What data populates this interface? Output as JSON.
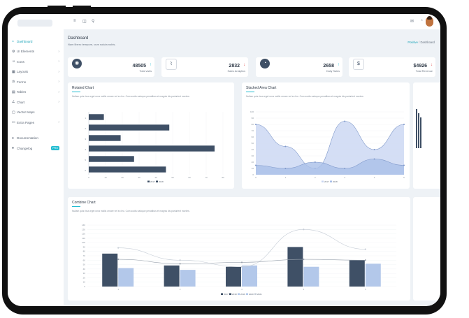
{
  "sidebar": {
    "items": [
      {
        "label": "Dashboard",
        "icon": "home-icon",
        "glyph": "⌂",
        "chevron": ""
      },
      {
        "label": "UI Elements",
        "icon": "gear-icon",
        "glyph": "⚙",
        "chevron": "›"
      },
      {
        "label": "Icons",
        "icon": "smile-icon",
        "glyph": "☺",
        "chevron": "›"
      },
      {
        "label": "Layouts",
        "icon": "grid-icon",
        "glyph": "▦",
        "chevron": "›"
      },
      {
        "label": "Forms",
        "icon": "clock-icon",
        "glyph": "◷",
        "chevron": "›"
      },
      {
        "label": "Tables",
        "icon": "table-icon",
        "glyph": "▤",
        "chevron": "›"
      },
      {
        "label": "Chart",
        "icon": "chart-icon",
        "glyph": "∠",
        "chevron": "›"
      },
      {
        "label": "Vector Maps",
        "icon": "map-icon",
        "glyph": "▢",
        "chevron": ""
      },
      {
        "label": "Extra Pages",
        "icon": "file-icon",
        "glyph": "▭",
        "chevron": "›"
      },
      {
        "label": "Documentation",
        "icon": "doc-icon",
        "glyph": "≡",
        "chevron": ""
      },
      {
        "label": "Changelog",
        "icon": "pin-icon",
        "glyph": "●",
        "chevron": "",
        "badge": "PRO"
      }
    ]
  },
  "topbar": {
    "menu_glyph": "≡",
    "window_glyph": "◫",
    "search_glyph": "⚲",
    "mail_glyph": "✉",
    "bell_glyph": "◔"
  },
  "page": {
    "title": "Dashboard",
    "subtitle": "Nam libero tempore, cum soluta nobis.",
    "breadcrumb_root": "Positive",
    "breadcrumb_sep": "/",
    "breadcrumb_current": "Dashboard"
  },
  "stats": [
    {
      "icon": "eye-icon",
      "glyph": "◉",
      "value": "48505",
      "arrow": "↑",
      "arrow_color": "#22bcd1",
      "label": "Total visits"
    },
    {
      "icon": "chart-line-icon",
      "glyph": "⌇",
      "value": "2832",
      "arrow": "↓",
      "arrow_color": "#e05252",
      "label": "Sales Analytics"
    },
    {
      "icon": "pie-icon",
      "glyph": "◔",
      "value": "2658",
      "arrow": "↑",
      "arrow_color": "#22bcd1",
      "label": "Daily Sales"
    },
    {
      "icon": "dollar-icon",
      "glyph": "$",
      "value": "$4926",
      "arrow": "↓",
      "arrow_color": "#e05252",
      "label": "Total Revenue"
    }
  ],
  "charts": {
    "rotated": {
      "title": "Rotated Chart",
      "desc": "Nullam quis risus eget urna mollis ornare vel eu leo. Cum sociis natoque penatibus et magnis dis parturient montes."
    },
    "stacked": {
      "title": "Stacked Area Chart",
      "desc": "Nullam quis risus eget urna mollis ornare vel eu leo. Cum sociis natoque penatibus et magnis dis parturient montes."
    },
    "combine": {
      "title": "Combine Chart",
      "desc": "Nullam quis risus eget urna mollis ornare vel eu leo. Cum sociis natoque penatibus et magnis dis parturient montes."
    }
  },
  "chart_data": [
    {
      "type": "bar",
      "orientation": "horizontal",
      "categories": [
        "1",
        "2",
        "3",
        "4",
        "5",
        "6"
      ],
      "values": [
        9,
        48,
        19,
        75,
        27,
        46
      ],
      "xlim": [
        0,
        80
      ],
      "xticks": [
        "0",
        "10",
        "20",
        "30",
        "40",
        "50",
        "60",
        "70",
        "80"
      ],
      "colors": [
        "#3f5066"
      ],
      "legend": [
        "2017",
        "2018"
      ],
      "legend_colors": [
        "#3f5066",
        "#3f5066"
      ]
    },
    {
      "type": "area",
      "x": [
        0,
        1,
        2,
        3,
        4,
        5
      ],
      "series": [
        {
          "values": [
            80,
            45,
            10,
            85,
            40,
            80
          ]
        },
        {
          "values": [
            15,
            10,
            20,
            10,
            25,
            15
          ]
        }
      ],
      "ylim": [
        0,
        100
      ],
      "yticks": [
        "0",
        "10",
        "20",
        "30",
        "40",
        "50",
        "60",
        "70",
        "80",
        "90",
        "100"
      ],
      "xticks": [
        "0",
        "1",
        "2",
        "3",
        "4",
        "5"
      ],
      "colors": [
        "#c9d6f2",
        "#a9bfe9"
      ],
      "legend": [
        "2017",
        "2018"
      ],
      "legend_colors": [
        "#c9d6f2",
        "#a9bfe9"
      ]
    },
    {
      "type": "bar",
      "categories": [
        "1",
        "2",
        "3",
        "4",
        "5"
      ],
      "series": [
        {
          "values": [
            75,
            48,
            45,
            90,
            60
          ]
        },
        {
          "values": [
            42,
            38,
            48,
            45,
            52
          ]
        }
      ],
      "lines": [
        {
          "values": [
            88,
            60,
            45,
            130,
            85
          ]
        },
        {
          "values": [
            62,
            52,
            55,
            62,
            60
          ]
        }
      ],
      "ylim": [
        0,
        140
      ],
      "yticks": [
        "0",
        "10",
        "20",
        "30",
        "40",
        "50",
        "60",
        "70",
        "80",
        "90",
        "100",
        "110",
        "120",
        "130",
        "140"
      ],
      "colors": [
        "#3f5066",
        "#b3c8ea"
      ],
      "line_colors": [
        "#c6cdd6",
        "#9aa3ae"
      ],
      "legend": [
        "2017",
        "2018",
        "2019",
        "2020",
        "2021"
      ],
      "legend_colors": [
        "#3f5066",
        "#3f5066",
        "#b3c8ea",
        "#b3c8ea",
        "#c6cdd6"
      ]
    }
  ]
}
